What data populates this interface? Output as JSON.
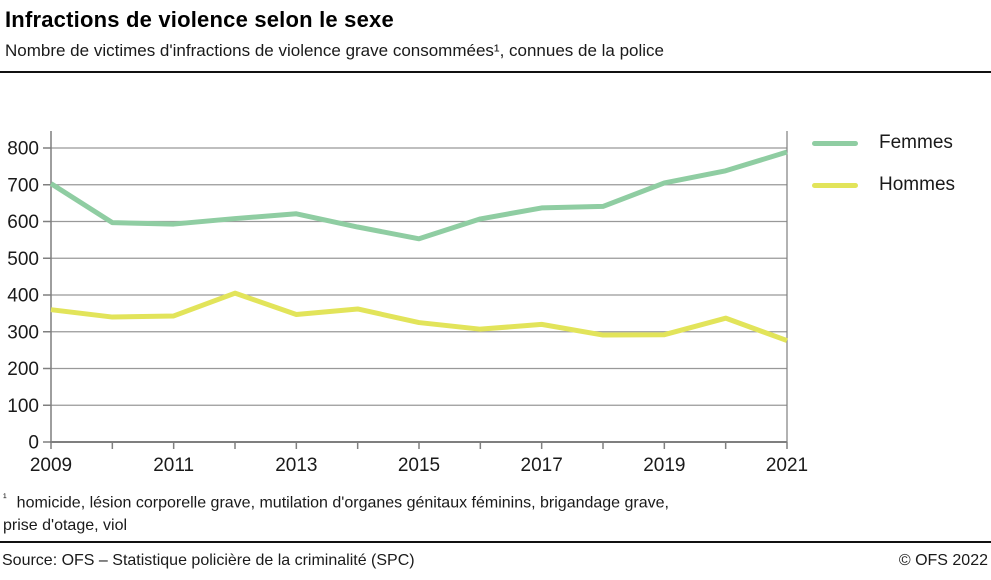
{
  "header": {
    "title": "Infractions de violence selon le sexe",
    "subtitle": "Nombre de victimes d'infractions de violence grave consommées¹, connues de la police"
  },
  "chart_data": {
    "type": "line",
    "years": [
      2009,
      2010,
      2011,
      2012,
      2013,
      2014,
      2015,
      2016,
      2017,
      2018,
      2019,
      2020,
      2021
    ],
    "x_tick_labels": [
      "2009",
      "2011",
      "2013",
      "2015",
      "2017",
      "2019",
      "2021"
    ],
    "y_ticks": [
      0,
      100,
      200,
      300,
      400,
      500,
      600,
      700,
      800
    ],
    "ylim": [
      0,
      800
    ],
    "grid": "horizontal",
    "legend_position": "right",
    "series": [
      {
        "name": "Femmes",
        "color": "#8FCDA2",
        "values": [
          703,
          597,
          593,
          608,
          621,
          585,
          553,
          607,
          637,
          641,
          705,
          738,
          789
        ]
      },
      {
        "name": "Hommes",
        "color": "#E2E45A",
        "values": [
          360,
          340,
          343,
          405,
          347,
          362,
          325,
          307,
          320,
          291,
          292,
          337,
          276
        ]
      }
    ],
    "colors": {
      "grid": "#999999",
      "axis": "#7f7f7f",
      "tick_text": "#1a1a1a"
    }
  },
  "footnote": {
    "marker": "¹",
    "line1": "homicide, lésion corporelle grave, mutilation d'organes génitaux féminins, brigandage grave,",
    "line2": "prise d'otage, viol"
  },
  "footer": {
    "source": "Source: OFS – Statistique policière de la criminalité (SPC)",
    "copyright": "© OFS 2022"
  }
}
